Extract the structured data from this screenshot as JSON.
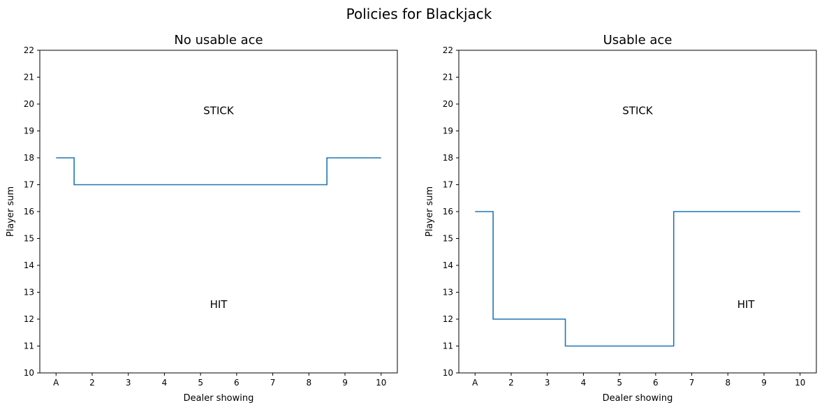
{
  "figure": {
    "suptitle": "Policies for Blackjack"
  },
  "colors": {
    "line": "#1f77b4",
    "axis": "#000000",
    "background": "#ffffff"
  },
  "chart_data": [
    {
      "type": "line",
      "title": "No usable ace",
      "xlabel": "Dealer showing",
      "ylabel": "Player sum",
      "x_ticks": [
        "A",
        "2",
        "3",
        "4",
        "5",
        "6",
        "7",
        "8",
        "9",
        "10"
      ],
      "y_ticks": [
        "10",
        "11",
        "12",
        "13",
        "14",
        "15",
        "16",
        "17",
        "18",
        "19",
        "20",
        "21",
        "22"
      ],
      "xlim": [
        0.55,
        10.45
      ],
      "ylim": [
        10,
        22
      ],
      "grid": false,
      "line_style": "step-mid",
      "series": [
        {
          "x": [
            1,
            2,
            3,
            4,
            5,
            6,
            7,
            8,
            9,
            10
          ],
          "values": [
            18,
            17,
            17,
            17,
            17,
            17,
            17,
            17,
            18,
            18
          ]
        }
      ],
      "annotations": [
        {
          "text": "STICK",
          "x": 5.5,
          "y": 19.75
        },
        {
          "text": "HIT",
          "x": 5.5,
          "y": 12.55
        }
      ]
    },
    {
      "type": "line",
      "title": "Usable ace",
      "xlabel": "Dealer showing",
      "ylabel": "Player sum",
      "x_ticks": [
        "A",
        "2",
        "3",
        "4",
        "5",
        "6",
        "7",
        "8",
        "9",
        "10"
      ],
      "y_ticks": [
        "10",
        "11",
        "12",
        "13",
        "14",
        "15",
        "16",
        "17",
        "18",
        "19",
        "20",
        "21",
        "22"
      ],
      "xlim": [
        0.55,
        10.45
      ],
      "ylim": [
        10,
        22
      ],
      "grid": false,
      "line_style": "step-mid",
      "series": [
        {
          "x": [
            1,
            2,
            3,
            4,
            5,
            6,
            7,
            8,
            9,
            10
          ],
          "values": [
            16,
            12,
            12,
            11,
            11,
            11,
            16,
            16,
            16,
            16
          ]
        }
      ],
      "annotations": [
        {
          "text": "STICK",
          "x": 5.5,
          "y": 19.75
        },
        {
          "text": "HIT",
          "x": 8.5,
          "y": 12.55
        }
      ]
    }
  ]
}
